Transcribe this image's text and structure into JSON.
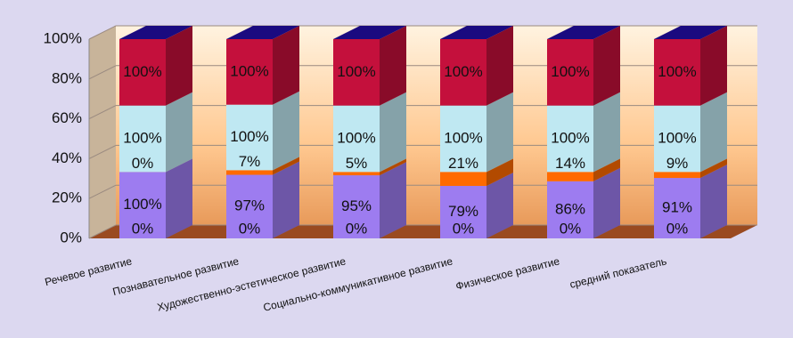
{
  "chart_data": {
    "type": "bar",
    "stack": "percent",
    "categories": [
      "Речевое развитие",
      "Познавательное развитие",
      "Художественно-эстетическое развитие",
      "Социально-коммуникативное развитие",
      "Физическое развитие",
      "средний показатель"
    ],
    "series": [
      {
        "color": "#8b3a1a",
        "values": [
          0,
          0,
          0,
          0,
          0,
          0
        ],
        "value_labels": [
          "0%",
          "0%",
          "0%",
          "0%",
          "0%",
          "0%"
        ]
      },
      {
        "color": "#9d7cf0",
        "values": [
          100,
          97,
          95,
          79,
          86,
          91
        ],
        "value_labels": [
          "100%",
          "97%",
          "95%",
          "79%",
          "86%",
          "91%"
        ]
      },
      {
        "color": "#ff6a00",
        "values": [
          0,
          7,
          5,
          21,
          14,
          9
        ],
        "value_labels": [
          "0%",
          "7%",
          "5%",
          "21%",
          "14%",
          "9%"
        ]
      },
      {
        "color": "#bfe8f2",
        "values": [
          100,
          100,
          100,
          100,
          100,
          100
        ],
        "value_labels": [
          "100%",
          "100%",
          "100%",
          "100%",
          "100%",
          "100%"
        ]
      },
      {
        "color": "#c4103c",
        "values": [
          100,
          100,
          100,
          100,
          100,
          100
        ],
        "value_labels": [
          "100%",
          "100%",
          "100%",
          "100%",
          "100%",
          "100%"
        ]
      }
    ],
    "ylim": [
      0,
      100
    ],
    "yticks": [
      {
        "value": 0,
        "label": "0%"
      },
      {
        "value": 20,
        "label": "20%"
      },
      {
        "value": 40,
        "label": "40%"
      },
      {
        "value": 60,
        "label": "60%"
      },
      {
        "value": 80,
        "label": "80%"
      },
      {
        "value": 100,
        "label": "100%"
      }
    ],
    "grid": true
  }
}
